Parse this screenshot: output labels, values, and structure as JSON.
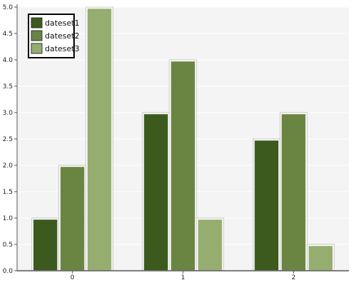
{
  "chart_data": {
    "type": "bar",
    "categories": [
      "0",
      "1",
      "2"
    ],
    "series": [
      {
        "name": "dateset1",
        "values": [
          1.0,
          3.0,
          2.5
        ],
        "color": "#3d5a1e"
      },
      {
        "name": "dateset2",
        "values": [
          2.0,
          4.0,
          3.0
        ],
        "color": "#6a8542"
      },
      {
        "name": "dateset3",
        "values": [
          5.0,
          1.0,
          0.5
        ],
        "color": "#95ad6e"
      }
    ],
    "ylim": [
      0,
      5
    ],
    "yticks": [
      "0.0",
      "0.5",
      "1.0",
      "1.5",
      "2.0",
      "2.5",
      "3.0",
      "3.5",
      "4.0",
      "4.5",
      "5.0"
    ],
    "title": "",
    "xlabel": "",
    "ylabel": "",
    "grid": true,
    "legend_position": "top-left",
    "colors": {
      "plot_background": "#f4f4f4",
      "gridline": "#ffffff",
      "axis": "#555555",
      "bar_outline": "#ffffff",
      "bar_outer_edge": "#c8c8c8",
      "legend_border": "#000000"
    }
  }
}
